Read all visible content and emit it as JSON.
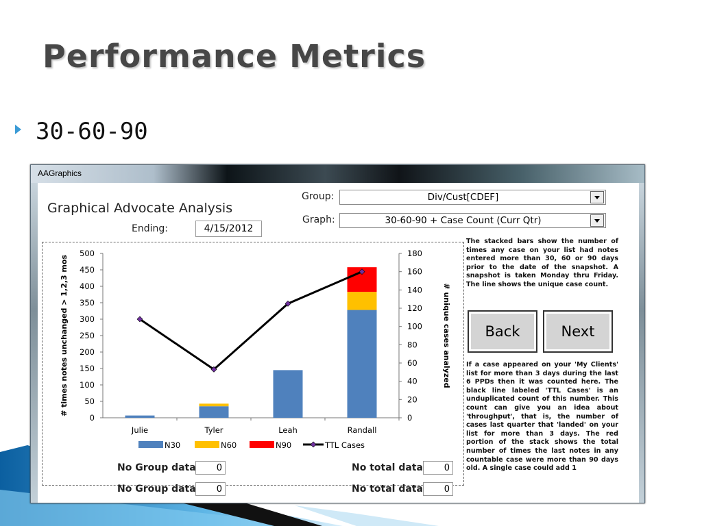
{
  "slide": {
    "title": "Performance Metrics",
    "bullet": "30-60-90"
  },
  "window": {
    "title": "AAGraphics"
  },
  "app": {
    "title": "Graphical Advocate Analysis",
    "ending_label": "Ending:",
    "ending_value": "4/15/2012",
    "group_label": "Group:",
    "group_value": "Div/Cust[CDEF]",
    "graph_label": "Graph:",
    "graph_value": "30-60-90 + Case Count (Curr Qtr)"
  },
  "description_top": "The stacked bars show the number of times any case on your list had notes entered more than 30, 60 or 90 days prior to the date of the snapshot. A snapshot is taken Monday thru Friday. The line shows the unique case count.",
  "description_bottom": "If a case appeared on your 'My Clients' list for more than 3 days during the last 6 PPDs then it was counted here. The black line labeled 'TTL Cases' is an unduplicated count of this number. This count can give you an idea about 'throughput', that is, the number of cases last quarter that 'landed' on your list for more than 3 days. The red portion of the stack shows the total number of times the last notes in any countable case were more than 90 days old. A single case could add 1",
  "buttons": {
    "back": "Back",
    "next": "Next"
  },
  "footer": {
    "row1_left_label": "No Group data",
    "row1_left_value": "0",
    "row1_right_label": "No total data",
    "row1_right_value": "0",
    "row2_left_label": "No Group data",
    "row2_left_value": "0",
    "row2_right_label": "No total data",
    "row2_right_value": "0"
  },
  "colors": {
    "n30": "#4f81bd",
    "n60": "#ffc000",
    "n90": "#ff0000",
    "ttl": "#000000",
    "ttl_marker": "#7030a0"
  },
  "chart_data": {
    "type": "bar",
    "stacked": true,
    "categories": [
      "Julie",
      "Tyler",
      "Leah",
      "Randall"
    ],
    "series": [
      {
        "name": "N30",
        "values": [
          7,
          35,
          145,
          328
        ]
      },
      {
        "name": "N60",
        "values": [
          0,
          8,
          0,
          55
        ]
      },
      {
        "name": "N90",
        "values": [
          0,
          0,
          0,
          75
        ]
      }
    ],
    "line_series": {
      "name": "TTL Cases",
      "axis": "secondary",
      "values": [
        108,
        53,
        125,
        160
      ]
    },
    "ylabel": "# times notes unchanged > 1,2,3 mos",
    "ylabel_secondary": "# unique cases analyzed",
    "ylim": [
      0,
      500
    ],
    "yticks": [
      0,
      50,
      100,
      150,
      200,
      250,
      300,
      350,
      400,
      450,
      500
    ],
    "ylim_secondary": [
      0,
      180
    ],
    "yticks_secondary": [
      0,
      20,
      40,
      60,
      80,
      100,
      120,
      140,
      160,
      180
    ],
    "legend": [
      "N30",
      "N60",
      "N90",
      "TTL Cases"
    ],
    "legend_position": "bottom",
    "grid": false
  }
}
